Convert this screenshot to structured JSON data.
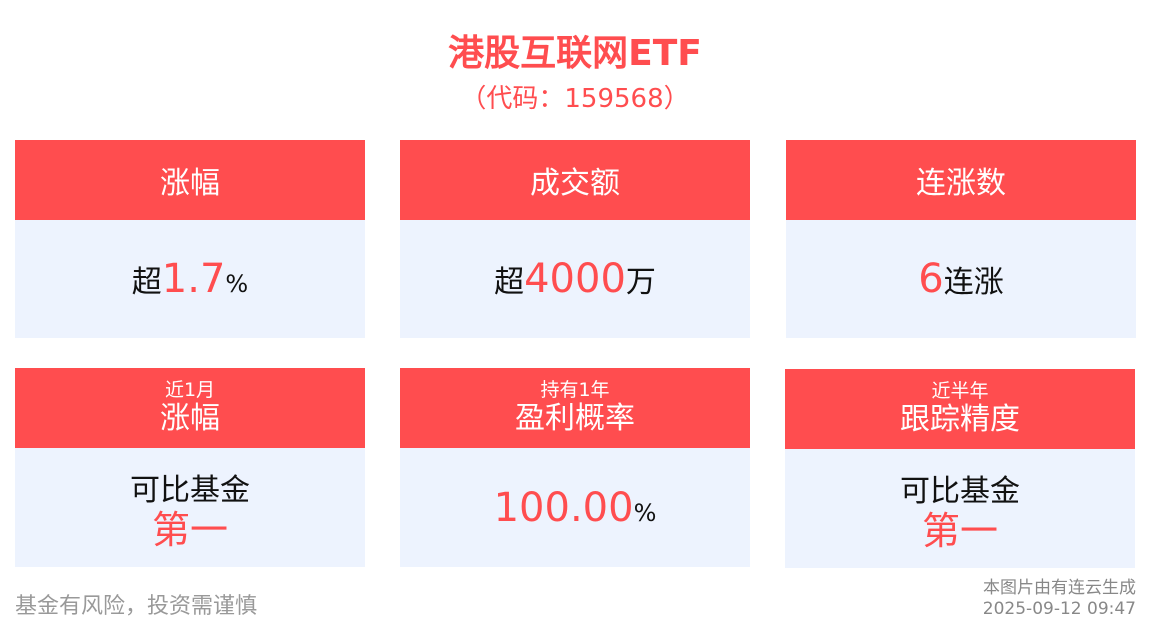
{
  "title": "港股互联网ETF",
  "code": "（代码：159568）",
  "cards": [
    {
      "header": "涨幅",
      "prefix": "超",
      "value": "1.7",
      "suffix": "%"
    },
    {
      "header": "成交额",
      "prefix": "超",
      "value": "4000",
      "suffix": "万"
    },
    {
      "header": "连涨数",
      "prefix": "",
      "value": "6",
      "suffix": "连涨"
    },
    {
      "sub": "近1月",
      "header": "涨幅",
      "line1": "可比基金",
      "line2": "第一"
    },
    {
      "sub": "持有1年",
      "header": "盈利概率",
      "value": "100.00",
      "suffix": "%"
    },
    {
      "sub": "近半年",
      "header": "跟踪精度",
      "line1": "可比基金",
      "line2": "第一"
    }
  ],
  "footer": {
    "disclaimer": "基金有风险，投资需谨慎",
    "source": "本图片由有连云生成",
    "timestamp": "2025-09-12 09:47"
  },
  "colors": {
    "accent": "#ff4d4f",
    "card_bg": "#edf3fe"
  }
}
